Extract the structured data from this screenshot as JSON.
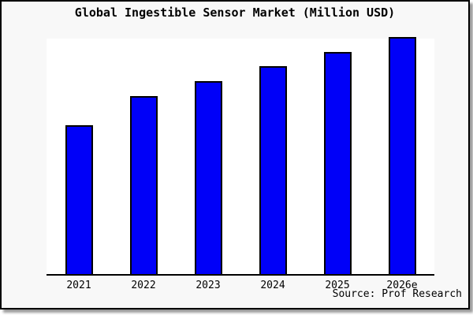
{
  "chart_data": {
    "type": "bar",
    "title": "Global Ingestible Sensor Market (Million USD)",
    "categories": [
      "2021",
      "2022",
      "2023",
      "2024",
      "2025",
      "2026e"
    ],
    "values": [
      62.7,
      75.0,
      81.3,
      87.7,
      93.7,
      100.0
    ],
    "value_scale": "percent of tallest (2026e) bar; chart displays no y-axis, ticks, gridlines or data labels",
    "xlabel": "",
    "ylabel": "",
    "ylim": [
      0,
      100
    ],
    "grid": false,
    "y_axis_visible": false,
    "legend": false,
    "bar_color": "#0000f8",
    "bar_border_color": "#000000",
    "plot_background": "#ffffff",
    "canvas_background": "#f8f8f8",
    "source_note": "Source: Prof Research"
  }
}
